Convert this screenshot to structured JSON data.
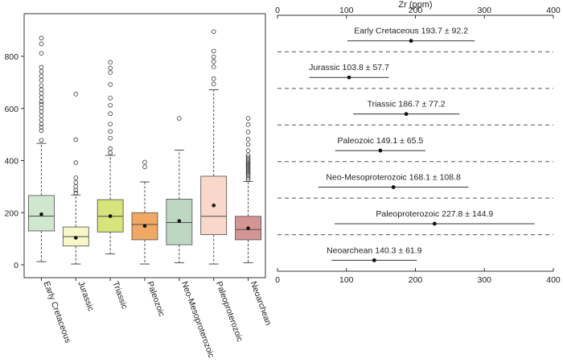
{
  "colors": {
    "axis": "#333333",
    "mean_dot": "#111111",
    "outlier_stroke": "#333333",
    "box_stroke": "#4d4d4d",
    "dash": "#555555"
  },
  "chart_data": [
    {
      "type": "box",
      "ylim": [
        0,
        950
      ],
      "yticks": [
        0,
        200,
        400,
        600,
        800
      ],
      "grid": false,
      "categories": [
        "Early Cretaceous",
        "Jurassic",
        "Triassic",
        "Paleozoic",
        "Neo-Mesoproterozoic",
        "Paleoproterozoic",
        "Neoarchean"
      ],
      "boxes": [
        {
          "name": "Early Cretaceous",
          "color": "#cfe6cf",
          "min": 12,
          "q1": 130,
          "median": 187,
          "q3": 266,
          "max": 466,
          "mean": 193.7,
          "outliers": [
            478,
            515,
            528,
            540,
            556,
            572,
            588,
            602,
            616,
            626,
            642,
            658,
            672,
            688,
            708,
            724,
            742,
            758,
            812,
            848,
            870
          ]
        },
        {
          "name": "Jurassic",
          "color": "#f7f7c7",
          "min": 3,
          "q1": 72,
          "median": 108,
          "q3": 145,
          "max": 268,
          "mean": 103.8,
          "outliers": [
            276,
            286,
            300,
            316,
            334,
            392,
            480,
            655
          ]
        },
        {
          "name": "Triassic",
          "color": "#d6e479",
          "min": 42,
          "q1": 126,
          "median": 186,
          "q3": 250,
          "max": 420,
          "mean": 186.7,
          "outliers": [
            430,
            446,
            486,
            512,
            540,
            580,
            612,
            640,
            692,
            738,
            755,
            777
          ]
        },
        {
          "name": "Paleozoic",
          "color": "#f0a865",
          "min": 3,
          "q1": 96,
          "median": 155,
          "q3": 200,
          "max": 318,
          "mean": 149.1,
          "outliers": [
            376,
            394
          ]
        },
        {
          "name": "Neo-Mesoproterozoic",
          "color": "#bcd8c3",
          "min": 8,
          "q1": 77,
          "median": 162,
          "q3": 252,
          "max": 440,
          "mean": 168.1,
          "outliers": [
            562
          ]
        },
        {
          "name": "Paleoproterozoic",
          "color": "#fad7cb",
          "min": 3,
          "q1": 116,
          "median": 186,
          "q3": 340,
          "max": 672,
          "mean": 227.8,
          "outliers": [
            694,
            714,
            760,
            780,
            798,
            820,
            895
          ]
        },
        {
          "name": "Neoarchean",
          "color": "#d69595",
          "min": 8,
          "q1": 96,
          "median": 135,
          "q3": 186,
          "max": 320,
          "mean": 140.3,
          "outliers": [
            328,
            336,
            344,
            350,
            356,
            362,
            368,
            374,
            380,
            386,
            392,
            398,
            404,
            412,
            420,
            438,
            462,
            482,
            510,
            538,
            562
          ]
        }
      ]
    },
    {
      "type": "errorbar",
      "xlabel": "Zr (ppm)",
      "xlim": [
        0,
        400
      ],
      "xticks": [
        0,
        100,
        200,
        300,
        400
      ],
      "items": [
        {
          "name": "Early Cretaceous",
          "label": "Early Cretaceous 193.7 ± 92.2",
          "mean": 193.7,
          "sd": 92.2
        },
        {
          "name": "Jurassic",
          "label": "Jurassic 103.8 ± 57.7",
          "mean": 103.8,
          "sd": 57.7
        },
        {
          "name": "Triassic",
          "label": "Triassic 186.7 ± 77.2",
          "mean": 186.7,
          "sd": 77.2
        },
        {
          "name": "Paleozoic",
          "label": "Paleozoic 149.1 ± 65.5",
          "mean": 149.1,
          "sd": 65.5
        },
        {
          "name": "Neo-Mesoproterozoic",
          "label": "Neo-Mesoproterozoic 168.1 ± 108.8",
          "mean": 168.1,
          "sd": 108.8
        },
        {
          "name": "Paleoproterozoic",
          "label": "Paleoproterozoic 227.8 ± 144.9",
          "mean": 227.8,
          "sd": 144.9
        },
        {
          "name": "Neoarchean",
          "label": "Neoarchean 140.3 ± 61.9",
          "mean": 140.3,
          "sd": 61.9
        }
      ]
    }
  ]
}
